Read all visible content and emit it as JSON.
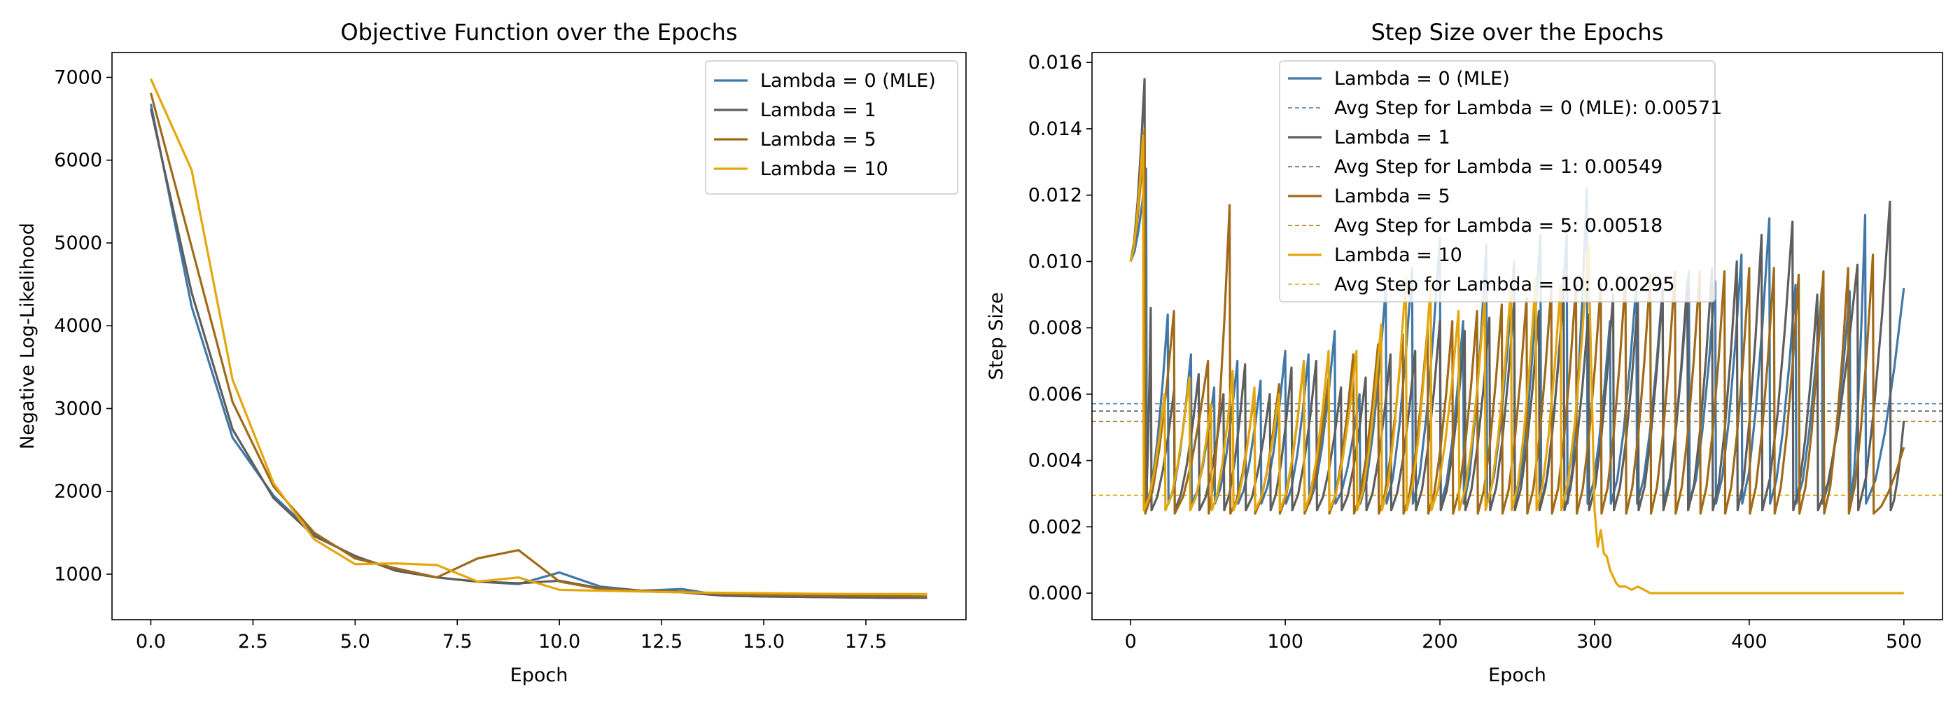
{
  "chart_data": [
    {
      "type": "line",
      "title": "Objective Function over the Epochs",
      "xlabel": "Epoch",
      "ylabel": "Negative Log-Likelihood",
      "xlim": [
        -0.95,
        19.95
      ],
      "ylim": [
        450,
        7300
      ],
      "xticks": [
        0.0,
        2.5,
        5.0,
        7.5,
        10.0,
        12.5,
        15.0,
        17.5
      ],
      "xtick_labels": [
        "0.0",
        "2.5",
        "5.0",
        "7.5",
        "10.0",
        "12.5",
        "15.0",
        "17.5"
      ],
      "yticks": [
        1000,
        2000,
        3000,
        4000,
        5000,
        6000,
        7000
      ],
      "ytick_labels": [
        "1000",
        "2000",
        "3000",
        "4000",
        "5000",
        "6000",
        "7000"
      ],
      "grid": false,
      "legend_position": "top-right",
      "x": [
        0,
        1,
        2,
        3,
        4,
        5,
        6,
        7,
        8,
        9,
        10,
        11,
        12,
        13,
        14,
        15,
        16,
        17,
        18,
        19
      ],
      "series": [
        {
          "name": "Lambda = 0 (MLE)",
          "color": "#4178a8",
          "values": [
            6680,
            4230,
            2650,
            1950,
            1480,
            1210,
            1060,
            960,
            910,
            880,
            1020,
            850,
            800,
            820,
            740,
            730,
            725,
            720,
            715,
            715
          ]
        },
        {
          "name": "Lambda = 1",
          "color": "#5e5e5e",
          "values": [
            6620,
            4400,
            2750,
            1920,
            1460,
            1220,
            1040,
            960,
            910,
            890,
            920,
            830,
            800,
            780,
            740,
            730,
            725,
            720,
            715,
            715
          ]
        },
        {
          "name": "Lambda = 5",
          "color": "#a06a18",
          "values": [
            6810,
            4950,
            3080,
            2060,
            1500,
            1190,
            1070,
            960,
            1190,
            1290,
            910,
            820,
            800,
            790,
            760,
            750,
            745,
            740,
            735,
            730
          ]
        },
        {
          "name": "Lambda = 10",
          "color": "#e4a60b",
          "values": [
            6980,
            5880,
            3350,
            2100,
            1420,
            1120,
            1130,
            1110,
            910,
            960,
            810,
            800,
            790,
            780,
            775,
            770,
            765,
            760,
            760,
            760
          ]
        }
      ]
    },
    {
      "type": "line",
      "title": "Step Size over the Epochs",
      "xlabel": "Epoch",
      "ylabel": "Step Size",
      "xlim": [
        -25,
        525
      ],
      "ylim": [
        -0.0008,
        0.0163
      ],
      "xticks": [
        0,
        100,
        200,
        300,
        400,
        500
      ],
      "xtick_labels": [
        "0",
        "100",
        "200",
        "300",
        "400",
        "500"
      ],
      "yticks": [
        0.0,
        0.002,
        0.004,
        0.006,
        0.008,
        0.01,
        0.012,
        0.014,
        0.016
      ],
      "ytick_labels": [
        "0.000",
        "0.002",
        "0.004",
        "0.006",
        "0.008",
        "0.010",
        "0.012",
        "0.014",
        "0.016"
      ],
      "grid": false,
      "legend_position": "top-center",
      "series": [
        {
          "name": "Lambda = 0 (MLE)",
          "color": "#4178a8",
          "sawtooth": {
            "start": 0.01,
            "peaks": [
              [
                10,
                0.0128
              ],
              [
                24,
                0.0084
              ],
              [
                39,
                0.0072
              ],
              [
                54,
                0.0062
              ],
              [
                69,
                0.007
              ],
              [
                84,
                0.0064
              ],
              [
                100,
                0.0073
              ],
              [
                115,
                0.0072
              ],
              [
                132,
                0.0079
              ],
              [
                148,
                0.006
              ],
              [
                165,
                0.0092
              ],
              [
                182,
                0.0098
              ],
              [
                200,
                0.0107
              ],
              [
                215,
                0.0082
              ],
              [
                230,
                0.0105
              ],
              [
                248,
                0.01
              ],
              [
                265,
                0.0108
              ],
              [
                282,
                0.0108
              ],
              [
                295,
                0.0122
              ],
              [
                310,
                0.0082
              ],
              [
                327,
                0.0093
              ],
              [
                344,
                0.0092
              ],
              [
                361,
                0.0097
              ],
              [
                378,
                0.0094
              ],
              [
                395,
                0.0102
              ],
              [
                413,
                0.0113
              ],
              [
                430,
                0.0093
              ],
              [
                447,
                0.0092
              ],
              [
                465,
                0.0091
              ],
              [
                475,
                0.0114
              ],
              [
                500,
                0.0092
              ]
            ],
            "trough": 0.0027
          }
        },
        {
          "name": "Avg Step for Lambda = 0 (MLE): 0.00571",
          "color": "#4178a8",
          "dashed": true,
          "value": 0.00571
        },
        {
          "name": "Lambda = 1",
          "color": "#5e5e5e",
          "sawtooth": {
            "start": 0.01,
            "peaks": [
              [
                9,
                0.0155
              ],
              [
                13,
                0.0086
              ],
              [
                28,
                0.0061
              ],
              [
                44,
                0.0066
              ],
              [
                60,
                0.006
              ],
              [
                74,
                0.0069
              ],
              [
                90,
                0.006
              ],
              [
                104,
                0.0068
              ],
              [
                120,
                0.007
              ],
              [
                136,
                0.0062
              ],
              [
                152,
                0.0065
              ],
              [
                168,
                0.0072
              ],
              [
                184,
                0.0073
              ],
              [
                200,
                0.0082
              ],
              [
                216,
                0.0079
              ],
              [
                232,
                0.0083
              ],
              [
                248,
                0.0088
              ],
              [
                264,
                0.0085
              ],
              [
                280,
                0.0091
              ],
              [
                296,
                0.0084
              ],
              [
                312,
                0.009
              ],
              [
                328,
                0.0088
              ],
              [
                344,
                0.0091
              ],
              [
                360,
                0.0094
              ],
              [
                376,
                0.0098
              ],
              [
                392,
                0.01
              ],
              [
                408,
                0.0108
              ],
              [
                428,
                0.0112
              ],
              [
                444,
                0.009
              ],
              [
                470,
                0.0099
              ],
              [
                491,
                0.0118
              ],
              [
                500,
                0.0052
              ]
            ],
            "trough": 0.0025
          }
        },
        {
          "name": "Avg Step for Lambda = 1: 0.00549",
          "color": "#5e5e5e",
          "dashed": true,
          "value": 0.00549
        },
        {
          "name": "Lambda = 5",
          "color": "#a06a18",
          "sawtooth": {
            "start": 0.01,
            "peaks": [
              [
                9,
                0.014
              ],
              [
                28,
                0.0085
              ],
              [
                50,
                0.007
              ],
              [
                64,
                0.0117
              ],
              [
                80,
                0.006
              ],
              [
                96,
                0.0063
              ],
              [
                112,
                0.007
              ],
              [
                128,
                0.0065
              ],
              [
                144,
                0.0072
              ],
              [
                160,
                0.0075
              ],
              [
                176,
                0.0078
              ],
              [
                192,
                0.008
              ],
              [
                208,
                0.0082
              ],
              [
                224,
                0.0085
              ],
              [
                240,
                0.0087
              ],
              [
                256,
                0.0089
              ],
              [
                272,
                0.0092
              ],
              [
                288,
                0.0093
              ],
              [
                304,
                0.0093
              ],
              [
                320,
                0.0095
              ],
              [
                336,
                0.0096
              ],
              [
                352,
                0.0097
              ],
              [
                368,
                0.0097
              ],
              [
                384,
                0.0097
              ],
              [
                400,
                0.0098
              ],
              [
                416,
                0.0098
              ],
              [
                432,
                0.0096
              ],
              [
                448,
                0.0097
              ],
              [
                464,
                0.0098
              ],
              [
                480,
                0.0102
              ],
              [
                500,
                0.0044
              ]
            ],
            "trough": 0.0024
          }
        },
        {
          "name": "Avg Step for Lambda = 5: 0.00518",
          "color": "#a06a18",
          "dashed": true,
          "value": 0.00518
        },
        {
          "name": "Lambda = 10",
          "color": "#e4a60b",
          "sawtooth": {
            "start": 0.01,
            "peaks": [
              [
                8,
                0.0138
              ],
              [
                22,
                0.006
              ],
              [
                38,
                0.0065
              ],
              [
                52,
                0.0057
              ],
              [
                66,
                0.0067
              ],
              [
                80,
                0.0062
              ],
              [
                96,
                0.006
              ],
              [
                112,
                0.007
              ],
              [
                128,
                0.0073
              ],
              [
                146,
                0.0073
              ],
              [
                162,
                0.0081
              ],
              [
                178,
                0.0095
              ],
              [
                194,
                0.0093
              ],
              [
                212,
                0.0085
              ],
              [
                229,
                0.0089
              ],
              [
                246,
                0.0093
              ],
              [
                262,
                0.0095
              ],
              [
                278,
                0.0093
              ],
              [
                296,
                0.0105
              ]
            ],
            "trough": 0.0025,
            "tail": [
              [
                300,
                0.0025
              ],
              [
                302,
                0.0014
              ],
              [
                304,
                0.0019
              ],
              [
                306,
                0.0012
              ],
              [
                308,
                0.0011
              ],
              [
                310,
                0.0007
              ],
              [
                312,
                0.0005
              ],
              [
                314,
                0.0003
              ],
              [
                316,
                0.0002
              ],
              [
                320,
                0.0002
              ],
              [
                324,
                0.0001
              ],
              [
                328,
                0.0002
              ],
              [
                332,
                0.0001
              ],
              [
                336,
                0.0
              ],
              [
                350,
                0.0
              ],
              [
                400,
                0.0
              ],
              [
                450,
                0.0
              ],
              [
                500,
                0.0
              ]
            ]
          }
        },
        {
          "name": "Avg Step for Lambda = 10: 0.00295",
          "color": "#e4a60b",
          "dashed": true,
          "value": 0.00295
        }
      ]
    }
  ]
}
